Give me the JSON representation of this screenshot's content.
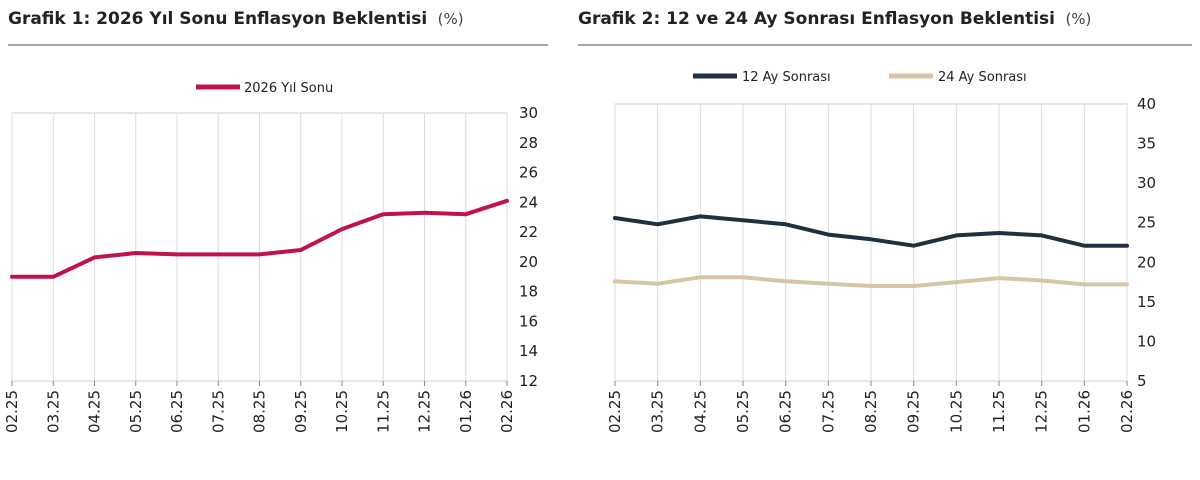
{
  "chart_data": [
    {
      "type": "line",
      "title": "Grafik 1: 2026 Yıl Sonu Enflasyon Beklentisi",
      "unit": "(%)",
      "categories": [
        "02.25",
        "03.25",
        "04.25",
        "05.25",
        "06.25",
        "07.25",
        "08.25",
        "09.25",
        "10.25",
        "11.25",
        "12.25",
        "01.26",
        "02.26"
      ],
      "ylim": [
        12,
        30
      ],
      "yticks": [
        12,
        14,
        16,
        18,
        20,
        22,
        24,
        26,
        28,
        30
      ],
      "legend_position": "top-center",
      "grid": "vertical",
      "series": [
        {
          "name": "2026 Yıl Sonu",
          "color": "#c0134a",
          "values": [
            19.0,
            19.0,
            20.3,
            20.6,
            20.5,
            20.5,
            20.5,
            20.8,
            22.2,
            23.2,
            23.3,
            23.2,
            24.1
          ]
        }
      ]
    },
    {
      "type": "line",
      "title": "Grafik 2: 12 ve 24 Ay Sonrası Enflasyon Beklentisi",
      "unit": "(%)",
      "categories": [
        "02.25",
        "03.25",
        "04.25",
        "05.25",
        "06.25",
        "07.25",
        "08.25",
        "09.25",
        "10.25",
        "11.25",
        "12.25",
        "01.26",
        "02.26"
      ],
      "ylim": [
        5,
        40
      ],
      "yticks": [
        5,
        10,
        15,
        20,
        25,
        30,
        35,
        40
      ],
      "legend_position": "top-center",
      "grid": "vertical",
      "series": [
        {
          "name": "12 Ay Sonrası",
          "color": "#1f3140",
          "values": [
            25.6,
            24.8,
            25.8,
            25.3,
            24.8,
            23.5,
            22.9,
            22.1,
            23.4,
            23.7,
            23.4,
            22.1,
            22.1
          ]
        },
        {
          "name": "24 Ay Sonrası",
          "color": "#d6c6a6",
          "values": [
            17.6,
            17.3,
            18.1,
            18.1,
            17.6,
            17.3,
            17.0,
            17.0,
            17.5,
            18.0,
            17.7,
            17.2,
            17.2
          ]
        }
      ]
    }
  ]
}
